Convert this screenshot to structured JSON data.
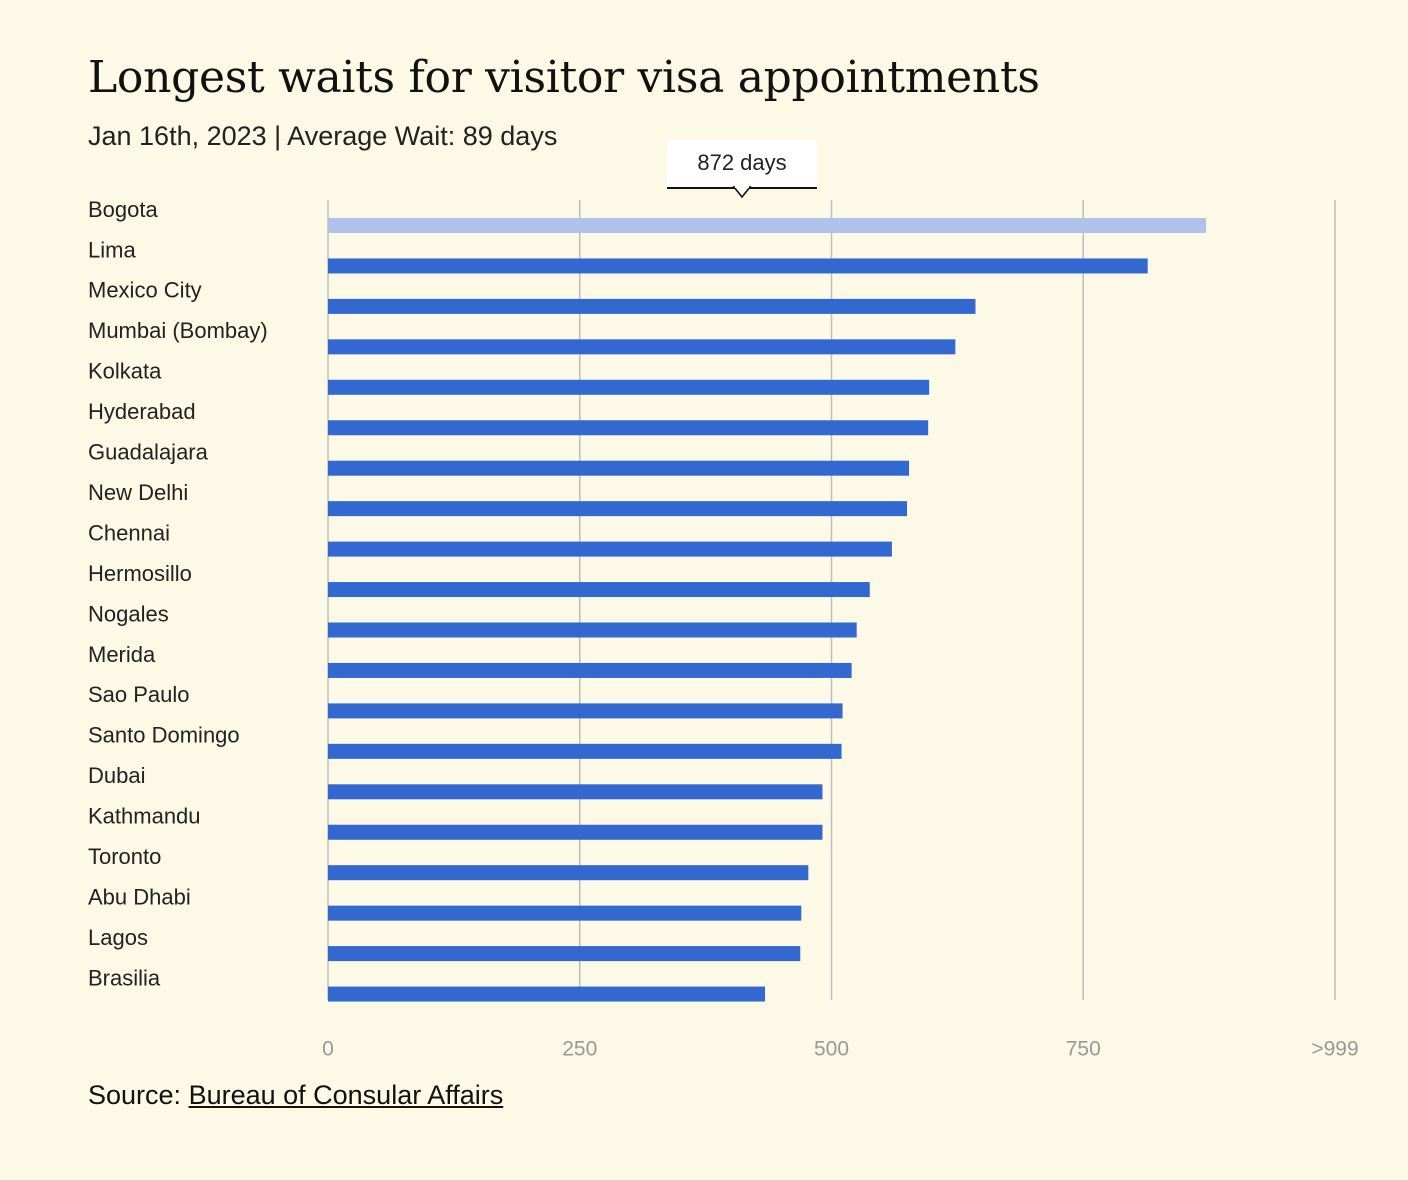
{
  "header": {
    "title": "Longest waits for visitor visa appointments",
    "subtitle": "Jan 16th, 2023 | Average Wait: 89 days"
  },
  "tooltip": {
    "text": "872 days",
    "category": "Bogota"
  },
  "source": {
    "prefix": "Source: ",
    "link_text": "Bureau of Consular Affairs"
  },
  "colors": {
    "bar": "#3368d1",
    "highlight": "#aec2ea",
    "grid": "#bdbdbd",
    "background": "#fcf9e6"
  },
  "chart_data": {
    "type": "bar",
    "orientation": "horizontal",
    "title": "Longest waits for visitor visa appointments",
    "xlabel": "",
    "ylabel": "",
    "xlim": [
      0,
      1000
    ],
    "ticks": [
      0,
      250,
      500,
      750,
      1000
    ],
    "tick_labels": [
      "0",
      "250",
      "500",
      "750",
      ">999"
    ],
    "grid": true,
    "highlighted": "Bogota",
    "categories": [
      "Bogota",
      "Lima",
      "Mexico City",
      "Mumbai (Bombay)",
      "Kolkata",
      "Hyderabad",
      "Guadalajara",
      "New Delhi",
      "Chennai",
      "Hermosillo",
      "Nogales",
      "Merida",
      "Sao Paulo",
      "Santo Domingo",
      "Dubai",
      "Kathmandu",
      "Toronto",
      "Abu Dhabi",
      "Lagos",
      "Brasilia"
    ],
    "values": [
      872,
      814,
      643,
      623,
      597,
      596,
      577,
      575,
      560,
      538,
      525,
      520,
      511,
      510,
      491,
      491,
      477,
      470,
      469,
      434
    ],
    "unit": "days"
  }
}
